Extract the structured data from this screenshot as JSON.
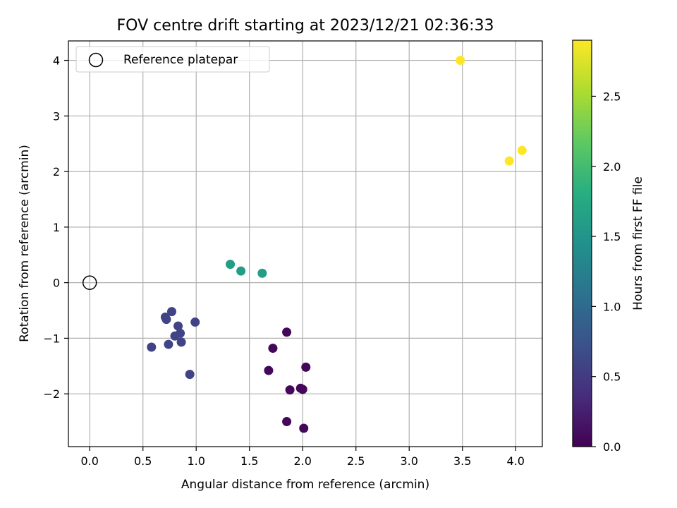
{
  "chart_data": {
    "type": "scatter",
    "title": "FOV centre drift starting at 2023/12/21 02:36:33",
    "xlabel": "Angular distance from reference (arcmin)",
    "ylabel": "Rotation from reference (arcmin)",
    "xlim": [
      -0.2,
      4.25
    ],
    "ylim": [
      -2.95,
      4.35
    ],
    "xticks": [
      "0.0",
      "0.5",
      "1.0",
      "1.5",
      "2.0",
      "2.5",
      "3.0",
      "3.5",
      "4.0"
    ],
    "yticks": [
      "−2",
      "−1",
      "0",
      "1",
      "2",
      "3",
      "4"
    ],
    "grid": true,
    "legend": {
      "position": "top-left",
      "entries": [
        "Reference platepar"
      ]
    },
    "reference": {
      "x": 0.0,
      "y": 0.0
    },
    "colorbar": {
      "label": "Hours from first FF file",
      "min": 0.0,
      "max": 2.9,
      "ticks": [
        "0.0",
        "0.5",
        "1.0",
        "1.5",
        "2.0",
        "2.5"
      ],
      "colormap": "viridis"
    },
    "points": [
      {
        "x": 1.85,
        "y": -0.89,
        "t": 0.05
      },
      {
        "x": 1.72,
        "y": -1.18,
        "t": 0.05
      },
      {
        "x": 2.03,
        "y": -1.52,
        "t": 0.05
      },
      {
        "x": 1.68,
        "y": -1.58,
        "t": 0.05
      },
      {
        "x": 1.88,
        "y": -1.93,
        "t": 0.05
      },
      {
        "x": 1.98,
        "y": -1.9,
        "t": 0.05
      },
      {
        "x": 2.0,
        "y": -1.92,
        "t": 0.05
      },
      {
        "x": 1.85,
        "y": -2.5,
        "t": 0.05
      },
      {
        "x": 2.01,
        "y": -2.62,
        "t": 0.05
      },
      {
        "x": 0.77,
        "y": -0.52,
        "t": 0.58
      },
      {
        "x": 0.71,
        "y": -0.62,
        "t": 0.58
      },
      {
        "x": 0.72,
        "y": -0.66,
        "t": 0.58
      },
      {
        "x": 0.99,
        "y": -0.71,
        "t": 0.58
      },
      {
        "x": 0.83,
        "y": -0.78,
        "t": 0.58
      },
      {
        "x": 0.85,
        "y": -0.91,
        "t": 0.58
      },
      {
        "x": 0.8,
        "y": -0.96,
        "t": 0.58
      },
      {
        "x": 0.86,
        "y": -1.07,
        "t": 0.58
      },
      {
        "x": 0.74,
        "y": -1.11,
        "t": 0.58
      },
      {
        "x": 0.58,
        "y": -1.16,
        "t": 0.58
      },
      {
        "x": 0.94,
        "y": -1.65,
        "t": 0.58
      },
      {
        "x": 1.32,
        "y": 0.33,
        "t": 1.6
      },
      {
        "x": 1.42,
        "y": 0.21,
        "t": 1.6
      },
      {
        "x": 1.62,
        "y": 0.17,
        "t": 1.6
      },
      {
        "x": 3.48,
        "y": 4.0,
        "t": 2.9
      },
      {
        "x": 4.06,
        "y": 2.38,
        "t": 2.9
      },
      {
        "x": 3.94,
        "y": 2.19,
        "t": 2.9
      }
    ]
  }
}
